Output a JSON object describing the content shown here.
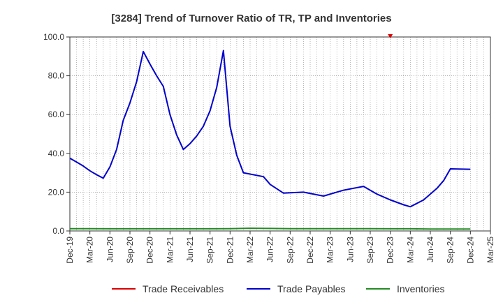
{
  "chart_data": {
    "type": "line",
    "title": "[3284]  Trend of Turnover Ratio of TR, TP and Inventories",
    "xlabel": "",
    "ylabel": "",
    "ylim": [
      0,
      100
    ],
    "y_ticks": [
      "0.0",
      "20.0",
      "40.0",
      "60.0",
      "80.0",
      "100.0"
    ],
    "x_ticks": [
      "Dec-19",
      "Mar-20",
      "Jun-20",
      "Sep-20",
      "Dec-20",
      "Mar-21",
      "Jun-21",
      "Sep-21",
      "Dec-21",
      "Mar-22",
      "Jun-22",
      "Sep-22",
      "Dec-22",
      "Mar-23",
      "Jun-23",
      "Sep-23",
      "Dec-23",
      "Mar-24",
      "Jun-24",
      "Sep-24",
      "Dec-24",
      "Mar-25"
    ],
    "grid": true,
    "legend_position": "bottom",
    "series": [
      {
        "name": "Trade Receivables",
        "color": "#dd0000",
        "points": [
          [
            48,
            100.0
          ]
        ]
      },
      {
        "name": "Trade Payables",
        "color": "#0000cc",
        "points": [
          [
            0,
            37.5
          ],
          [
            1,
            35.5
          ],
          [
            2,
            33.5
          ],
          [
            3,
            31
          ],
          [
            4,
            29
          ],
          [
            5,
            27.2
          ],
          [
            6,
            33
          ],
          [
            7,
            42
          ],
          [
            8,
            57
          ],
          [
            9,
            66
          ],
          [
            10,
            77
          ],
          [
            11,
            92.5
          ],
          [
            12,
            86
          ],
          [
            13,
            80
          ],
          [
            14,
            74.5
          ],
          [
            15,
            60
          ],
          [
            16,
            49.5
          ],
          [
            17,
            42
          ],
          [
            18,
            45
          ],
          [
            19,
            49
          ],
          [
            20,
            54
          ],
          [
            21,
            62
          ],
          [
            22,
            74
          ],
          [
            23,
            93
          ],
          [
            24,
            54
          ],
          [
            25,
            39
          ],
          [
            26,
            30
          ],
          [
            29,
            28
          ],
          [
            30,
            24
          ],
          [
            32,
            19.5
          ],
          [
            35,
            20
          ],
          [
            38,
            18
          ],
          [
            41,
            21
          ],
          [
            44,
            23
          ],
          [
            46,
            19
          ],
          [
            48,
            16
          ],
          [
            50,
            13.5
          ],
          [
            51,
            12.5
          ],
          [
            53,
            16
          ],
          [
            55,
            22
          ],
          [
            56,
            26
          ],
          [
            57,
            32
          ],
          [
            60,
            31.8
          ]
        ]
      },
      {
        "name": "Inventories",
        "color": "#228b22",
        "points": [
          [
            0,
            1.2
          ],
          [
            3,
            1.2
          ],
          [
            6,
            1.1
          ],
          [
            9,
            1.1
          ],
          [
            12,
            1.1
          ],
          [
            15,
            1.1
          ],
          [
            18,
            1.1
          ],
          [
            21,
            1.1
          ],
          [
            24,
            1.2
          ],
          [
            27,
            1.4
          ],
          [
            30,
            1.3
          ],
          [
            33,
            1.2
          ],
          [
            36,
            1.2
          ],
          [
            39,
            1.2
          ],
          [
            42,
            1.2
          ],
          [
            45,
            1.2
          ],
          [
            48,
            1.1
          ],
          [
            51,
            1.1
          ],
          [
            54,
            1.0
          ],
          [
            57,
            1.0
          ],
          [
            60,
            1.0
          ]
        ]
      }
    ]
  }
}
